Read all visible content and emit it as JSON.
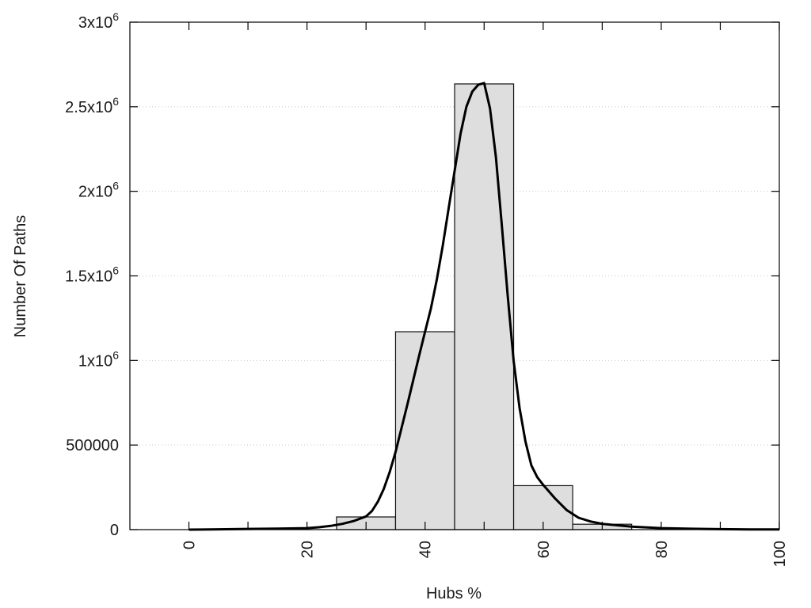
{
  "chart_data": {
    "type": "bar",
    "title": "",
    "xlabel": "Hubs %",
    "ylabel": "Number Of Paths",
    "xlim": [
      -10,
      100
    ],
    "ylim": [
      0,
      3000000
    ],
    "grid": "horizontal dotted",
    "legend": "none",
    "x_ticks": [
      {
        "value": 0,
        "label": "0"
      },
      {
        "value": 20,
        "label": "20"
      },
      {
        "value": 40,
        "label": "40"
      },
      {
        "value": 60,
        "label": "60"
      },
      {
        "value": 80,
        "label": "80"
      },
      {
        "value": 100,
        "label": "100"
      }
    ],
    "y_ticks": [
      {
        "value": 0,
        "base": "0",
        "exp": ""
      },
      {
        "value": 500000,
        "base": "500000",
        "exp": ""
      },
      {
        "value": 1000000,
        "base": "1x10",
        "exp": "6"
      },
      {
        "value": 1500000,
        "base": "1.5x10",
        "exp": "6"
      },
      {
        "value": 2000000,
        "base": "2x10",
        "exp": "6"
      },
      {
        "value": 2500000,
        "base": "2.5x10",
        "exp": "6"
      },
      {
        "value": 3000000,
        "base": "3x10",
        "exp": "6"
      }
    ],
    "bins": [
      {
        "center": 30,
        "width": 10,
        "value": 75000
      },
      {
        "center": 40,
        "width": 10,
        "value": 1170000
      },
      {
        "center": 50,
        "width": 10,
        "value": 2635000
      },
      {
        "center": 60,
        "width": 10,
        "value": 260000
      },
      {
        "center": 70,
        "width": 10,
        "value": 32000
      }
    ],
    "series": [
      {
        "type": "line",
        "x": [
          0,
          5,
          10,
          15,
          20,
          22,
          24,
          26,
          28,
          30,
          31,
          32,
          33,
          34,
          35,
          37,
          39,
          40,
          41,
          42,
          43,
          44,
          45,
          46,
          47,
          48,
          49,
          50,
          51,
          52,
          53,
          54,
          55,
          56,
          57,
          58,
          59,
          60,
          62,
          64,
          66,
          68,
          70,
          75,
          80,
          85,
          90,
          95,
          100
        ],
        "y": [
          0,
          2000,
          4000,
          6000,
          9000,
          14000,
          22000,
          34000,
          52000,
          78000,
          110000,
          165000,
          240000,
          340000,
          460000,
          740000,
          1030000,
          1170000,
          1310000,
          1480000,
          1680000,
          1900000,
          2120000,
          2340000,
          2500000,
          2590000,
          2630000,
          2640000,
          2490000,
          2200000,
          1800000,
          1380000,
          1000000,
          720000,
          520000,
          380000,
          310000,
          265000,
          185000,
          115000,
          70000,
          48000,
          34000,
          18000,
          9000,
          5000,
          3000,
          1500,
          800
        ]
      }
    ]
  }
}
